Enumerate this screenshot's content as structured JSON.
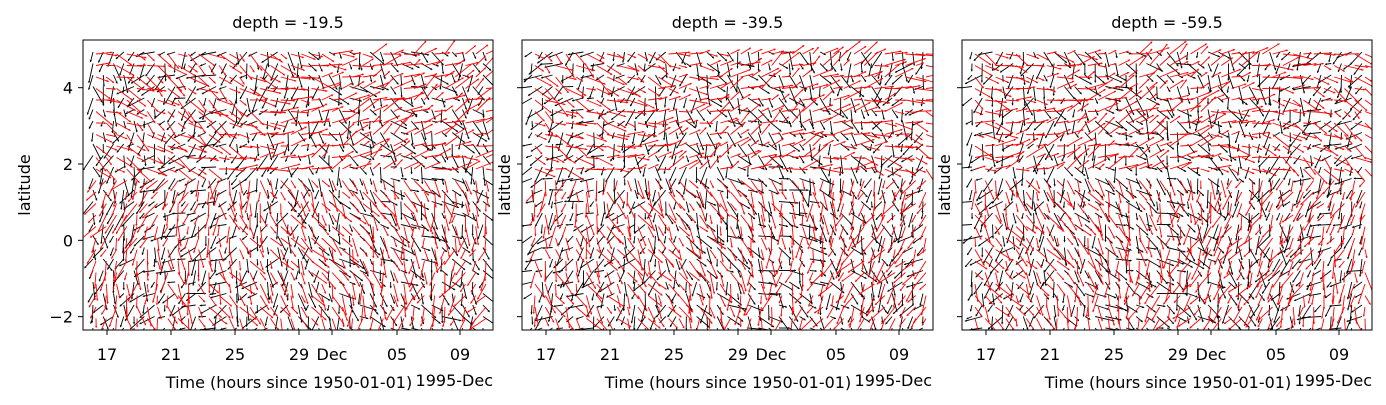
{
  "chart_data": [
    {
      "type": "quiver",
      "title": "depth = -19.5",
      "xlabel": "Time (hours since 1950-01-01)",
      "xlabel_overlay": "1995-Dec",
      "ylabel": "latitude",
      "xtick_labels": [
        "17",
        "21",
        "25",
        "29",
        "Dec",
        "05",
        "09"
      ],
      "ytick_labels": [
        "−2",
        "0",
        "2",
        "4"
      ],
      "yticks": [
        -2,
        0,
        2,
        4
      ],
      "ylim": [
        -2.35,
        5.25
      ],
      "series": [
        {
          "color": "#000000"
        },
        {
          "color": "#ff0000"
        }
      ]
    },
    {
      "type": "quiver",
      "title": "depth = -39.5",
      "xlabel": "Time (hours since 1950-01-01)",
      "xlabel_overlay": "1995-Dec",
      "ylabel": "latitude",
      "xtick_labels": [
        "17",
        "21",
        "25",
        "29",
        "Dec",
        "05",
        "09"
      ],
      "ytick_labels": [
        "",
        "",
        "",
        ""
      ],
      "yticks": [
        -2,
        0,
        2,
        4
      ],
      "ylim": [
        -2.35,
        5.25
      ],
      "series": [
        {
          "color": "#000000"
        },
        {
          "color": "#ff0000"
        }
      ]
    },
    {
      "type": "quiver",
      "title": "depth = -59.5",
      "xlabel": "Time (hours since 1950-01-01)",
      "xlabel_overlay": "1995-Dec",
      "ylabel": "latitude",
      "xtick_labels": [
        "17",
        "21",
        "25",
        "29",
        "Dec",
        "05",
        "09"
      ],
      "ytick_labels": [
        "",
        "",
        "",
        ""
      ],
      "yticks": [
        -2,
        0,
        2,
        4
      ],
      "ylim": [
        -2.35,
        5.25
      ],
      "series": [
        {
          "color": "#000000"
        },
        {
          "color": "#ff0000"
        }
      ]
    }
  ]
}
